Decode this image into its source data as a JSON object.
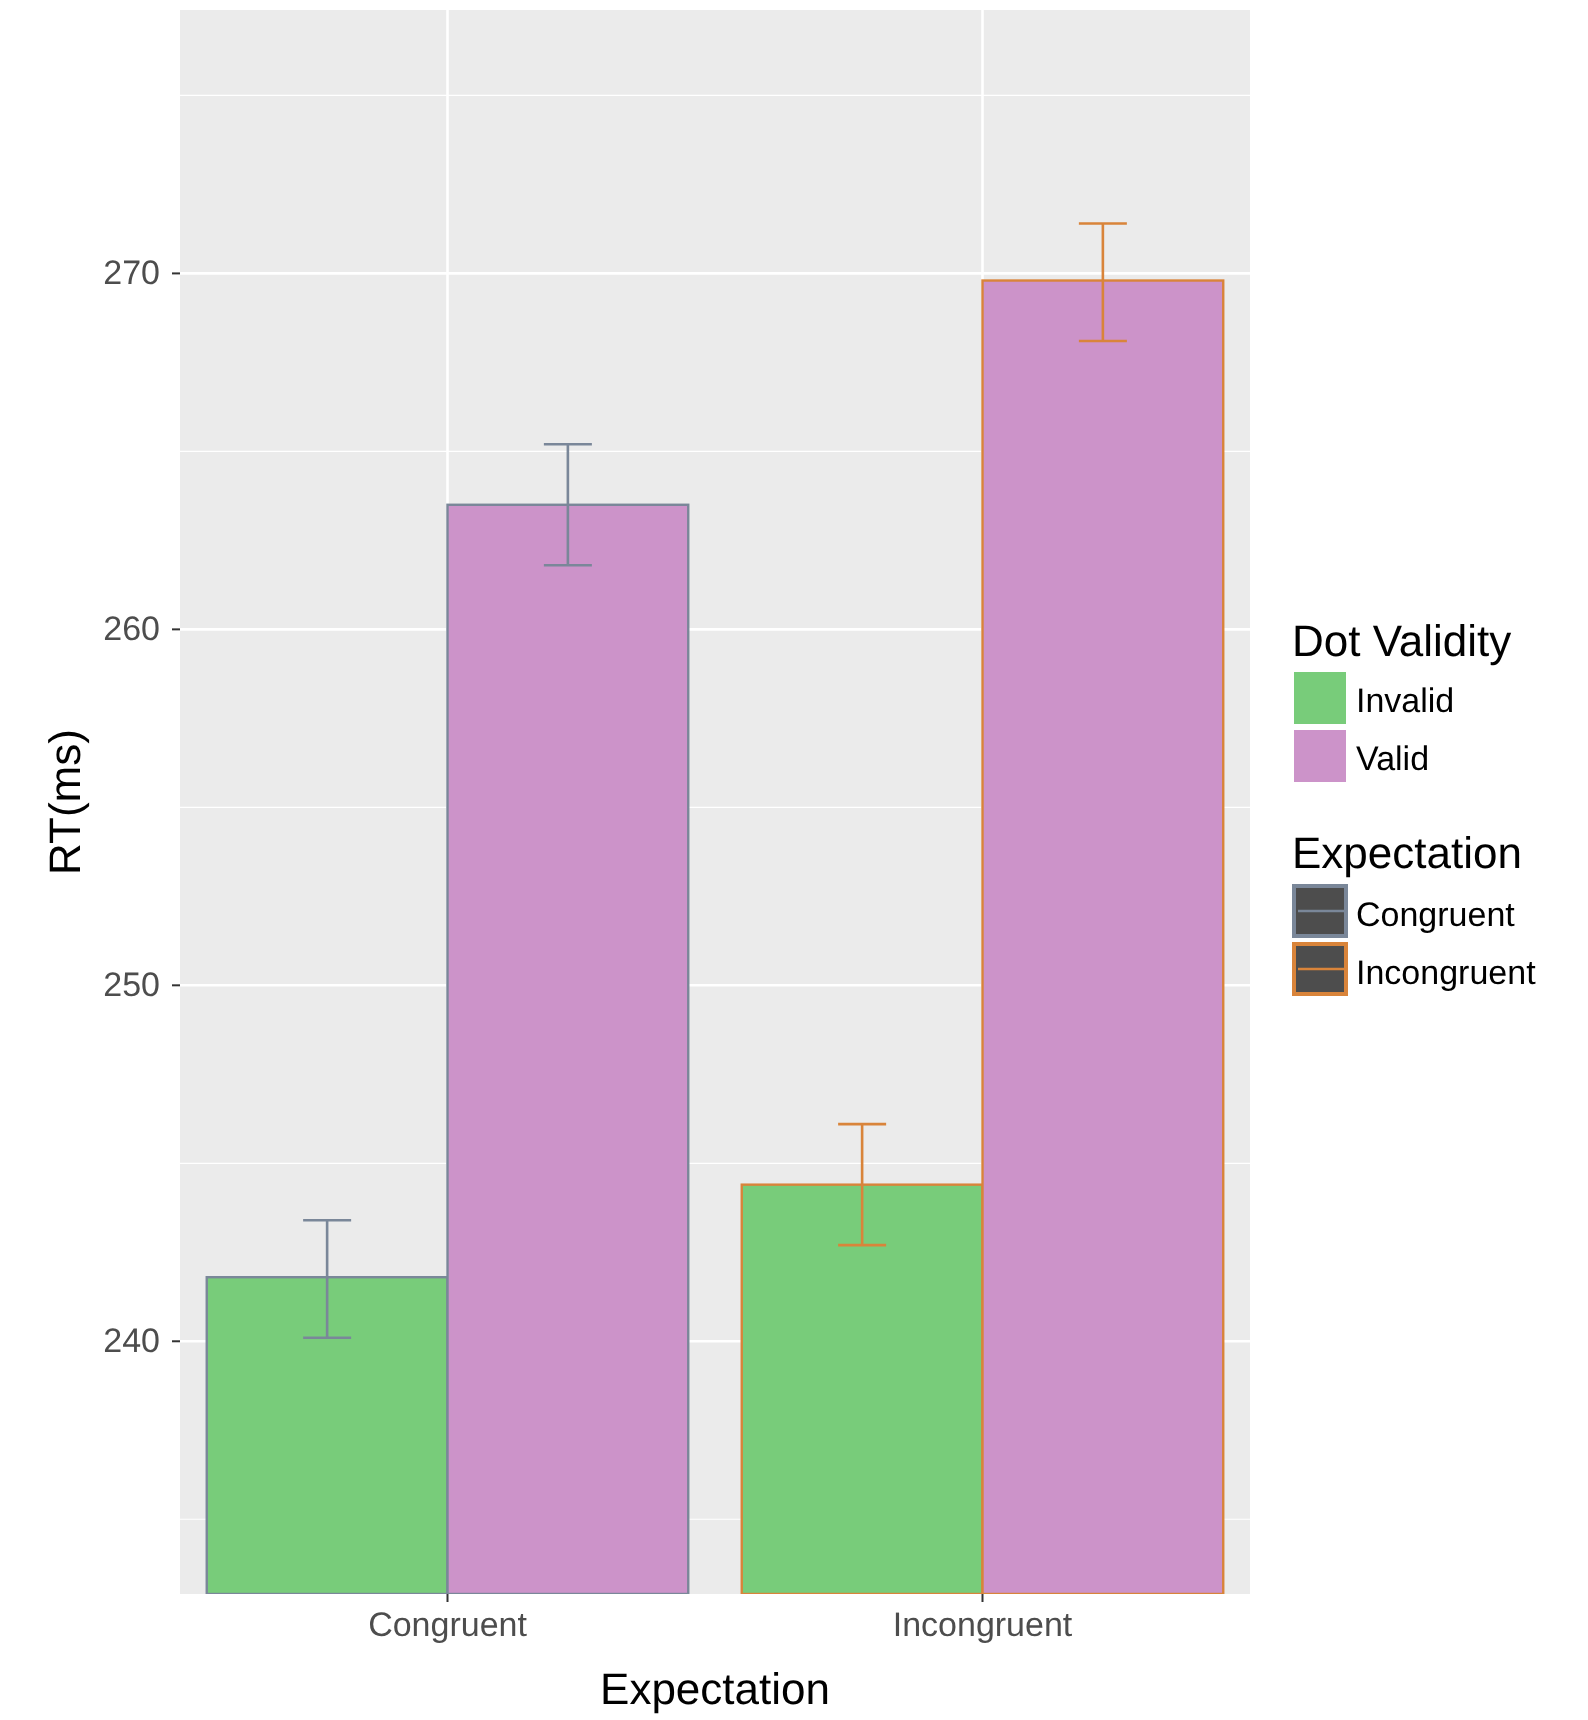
{
  "chart_data": {
    "type": "bar",
    "xlabel": "Expectation",
    "ylabel": "RT(ms)",
    "legend_title": "Dot Validity",
    "categories": [
      "Congruent",
      "Incongruent"
    ],
    "series": [
      {
        "name": "Invalid",
        "color": "#78cc7a",
        "values": [
          241.8,
          244.4
        ],
        "errors": [
          [
            240.1,
            243.4
          ],
          [
            242.7,
            246.1
          ]
        ]
      },
      {
        "name": "Valid",
        "color": "#cc93c9",
        "values": [
          263.5,
          269.8
        ],
        "errors": [
          [
            261.8,
            265.2
          ],
          [
            268.1,
            271.4
          ]
        ]
      }
    ],
    "ylim": [
      232.9,
      277.4
    ],
    "yticks": [
      240,
      250,
      260,
      270
    ],
    "grid": true,
    "legend": "right",
    "annotations": [
      "Expectation",
      "Congruent",
      "Incongruent"
    ]
  }
}
